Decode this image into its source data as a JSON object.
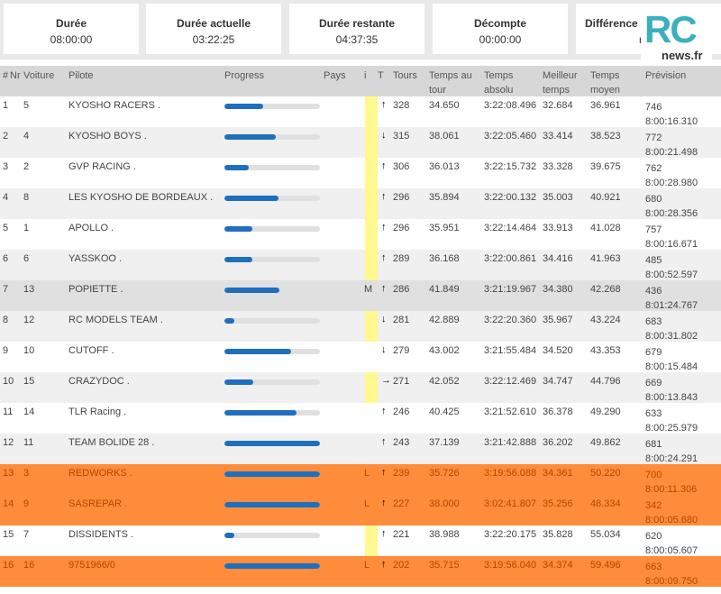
{
  "cards": [
    {
      "label": "Durée",
      "value": "08:00:00"
    },
    {
      "label": "Durée actuelle",
      "value": "03:22:25"
    },
    {
      "label": "Durée restante",
      "value": "04:37:35"
    },
    {
      "label": "Décompte",
      "value": "00:00:00"
    },
    {
      "label": "Différence a",
      "value": "n"
    }
  ],
  "logo": {
    "big": "RC",
    "small": "news.fr"
  },
  "headers": {
    "hash": "#",
    "nr": "Nr",
    "voiture": "Voiture",
    "pilote": "Pilote",
    "progress": "Progress",
    "pays": "Pays",
    "i": "i",
    "t": "T",
    "tours": "Tours",
    "temps_tour_1": "Temps au",
    "temps_tour_2": "tour",
    "temps_abs_1": "Temps",
    "temps_abs_2": "absolu",
    "meilleur_1": "Meilleur",
    "meilleur_2": "temps",
    "moyen_1": "Temps",
    "moyen_2": "moyen",
    "prevision": "Prévision"
  },
  "rows": [
    {
      "pos": "1",
      "nr": "5",
      "pilote": "KYOSHO RACERS .",
      "progress": 0.41,
      "pays": "",
      "i": "",
      "yellow": true,
      "arrow": "↑",
      "tours": "328",
      "tour": "34.650",
      "absolu": "3:22:08.496",
      "best": "32.684",
      "moyen": "36.961",
      "prev1": "746",
      "prev2": "8:00:16.310",
      "style": "odd"
    },
    {
      "pos": "2",
      "nr": "4",
      "pilote": "KYOSHO BOYS .",
      "progress": 0.54,
      "pays": "",
      "i": "",
      "yellow": true,
      "arrow": "↓",
      "tours": "315",
      "tour": "38.061",
      "absolu": "3:22:05.460",
      "best": "33.414",
      "moyen": "38.523",
      "prev1": "772",
      "prev2": "8:00:21.498",
      "style": "even"
    },
    {
      "pos": "3",
      "nr": "2",
      "pilote": "GVP RACING .",
      "progress": 0.25,
      "pays": "",
      "i": "",
      "yellow": true,
      "arrow": "↑",
      "tours": "306",
      "tour": "36.013",
      "absolu": "3:22:15.732",
      "best": "33.328",
      "moyen": "39.675",
      "prev1": "762",
      "prev2": "8:00:28.980",
      "style": "odd"
    },
    {
      "pos": "4",
      "nr": "8",
      "pilote": "LES KYOSHO DE BORDEAUX .",
      "progress": 0.57,
      "pays": "",
      "i": "",
      "yellow": true,
      "arrow": "↑",
      "tours": "296",
      "tour": "35.894",
      "absolu": "3:22:00.132",
      "best": "35.003",
      "moyen": "40.921",
      "prev1": "680",
      "prev2": "8:00:28.356",
      "style": "even"
    },
    {
      "pos": "5",
      "nr": "1",
      "pilote": "APOLLO .",
      "progress": 0.29,
      "pays": "",
      "i": "",
      "yellow": true,
      "arrow": "↑",
      "tours": "296",
      "tour": "35.951",
      "absolu": "3:22:14.464",
      "best": "33.913",
      "moyen": "41.028",
      "prev1": "757",
      "prev2": "8:00:16.671",
      "style": "odd"
    },
    {
      "pos": "6",
      "nr": "6",
      "pilote": "YASSKOO .",
      "progress": 0.29,
      "pays": "",
      "i": "",
      "yellow": true,
      "arrow": "↑",
      "tours": "289",
      "tour": "36.168",
      "absolu": "3:22:00.861",
      "best": "34.416",
      "moyen": "41.963",
      "prev1": "485",
      "prev2": "8:00:52.597",
      "style": "even"
    },
    {
      "pos": "7",
      "nr": "13",
      "pilote": "POPIETTE .",
      "progress": 0.58,
      "pays": "",
      "i": "M",
      "yellow": false,
      "arrow": "↑",
      "tours": "286",
      "tour": "41.849",
      "absolu": "3:21:19.967",
      "best": "34.380",
      "moyen": "42.268",
      "prev1": "436",
      "prev2": "8:01:24.767",
      "style": "grey"
    },
    {
      "pos": "8",
      "nr": "12",
      "pilote": "RC MODELS TEAM .",
      "progress": 0.1,
      "pays": "",
      "i": "",
      "yellow": true,
      "arrow": "↓",
      "tours": "281",
      "tour": "42.889",
      "absolu": "3:22:20.360",
      "best": "35.967",
      "moyen": "43.224",
      "prev1": "683",
      "prev2": "8:00:31.802",
      "style": "even"
    },
    {
      "pos": "9",
      "nr": "10",
      "pilote": "CUTOFF .",
      "progress": 0.7,
      "pays": "",
      "i": "",
      "yellow": false,
      "arrow": "↓",
      "tours": "279",
      "tour": "43.002",
      "absolu": "3:21:55.484",
      "best": "34.520",
      "moyen": "43.353",
      "prev1": "679",
      "prev2": "8:00:15.484",
      "style": "odd"
    },
    {
      "pos": "10",
      "nr": "15",
      "pilote": "CRAZYDOC .",
      "progress": 0.3,
      "pays": "",
      "i": "",
      "yellow": true,
      "arrow": "→",
      "tours": "271",
      "tour": "42.052",
      "absolu": "3:22:12.469",
      "best": "34.747",
      "moyen": "44.796",
      "prev1": "669",
      "prev2": "8:00:13.843",
      "style": "even"
    },
    {
      "pos": "11",
      "nr": "14",
      "pilote": "TLR Racing .",
      "progress": 0.75,
      "pays": "",
      "i": "",
      "yellow": false,
      "arrow": "↑",
      "tours": "246",
      "tour": "40.425",
      "absolu": "3:21:52.610",
      "best": "36.378",
      "moyen": "49.290",
      "prev1": "633",
      "prev2": "8:00:25.979",
      "style": "odd"
    },
    {
      "pos": "12",
      "nr": "11",
      "pilote": "TEAM BOLIDE 28 .",
      "progress": 1.0,
      "pays": "",
      "i": "",
      "yellow": false,
      "arrow": "↑",
      "tours": "243",
      "tour": "37.139",
      "absolu": "3:21:42.888",
      "best": "36.202",
      "moyen": "49.862",
      "prev1": "681",
      "prev2": "8:00:24.291",
      "style": "even"
    },
    {
      "pos": "13",
      "nr": "3",
      "pilote": "REDWORKS .",
      "progress": 1.0,
      "pays": "",
      "i": "L",
      "yellow": false,
      "arrow": "↑",
      "tours": "239",
      "tour": "35.726",
      "absolu": "3:19:56.088",
      "best": "34.361",
      "moyen": "50.220",
      "prev1": "700",
      "prev2": "8:00:11.306",
      "style": "orange"
    },
    {
      "pos": "14",
      "nr": "9",
      "pilote": "SASREPAR .",
      "progress": 1.0,
      "pays": "",
      "i": "L",
      "yellow": false,
      "arrow": "↑",
      "tours": "227",
      "tour": "38.000",
      "absolu": "3:02:41.807",
      "best": "35.256",
      "moyen": "48.334",
      "prev1": "342",
      "prev2": "8:00:05.680",
      "style": "orange"
    },
    {
      "pos": "15",
      "nr": "7",
      "pilote": "DISSIDENTS .",
      "progress": 0.1,
      "pays": "",
      "i": "",
      "yellow": true,
      "arrow": "↑",
      "tours": "221",
      "tour": "38.988",
      "absolu": "3:22:20.175",
      "best": "35.828",
      "moyen": "55.034",
      "prev1": "620",
      "prev2": "8:00:05.607",
      "style": "odd"
    },
    {
      "pos": "16",
      "nr": "16",
      "pilote": "9751966/0",
      "progress": 1.0,
      "pays": "",
      "i": "L",
      "yellow": false,
      "arrow": "↑",
      "tours": "202",
      "tour": "35.715",
      "absolu": "3:19:56.040",
      "best": "34.374",
      "moyen": "59.496",
      "prev1": "663",
      "prev2": "8:00:09.750",
      "style": "orange"
    }
  ]
}
